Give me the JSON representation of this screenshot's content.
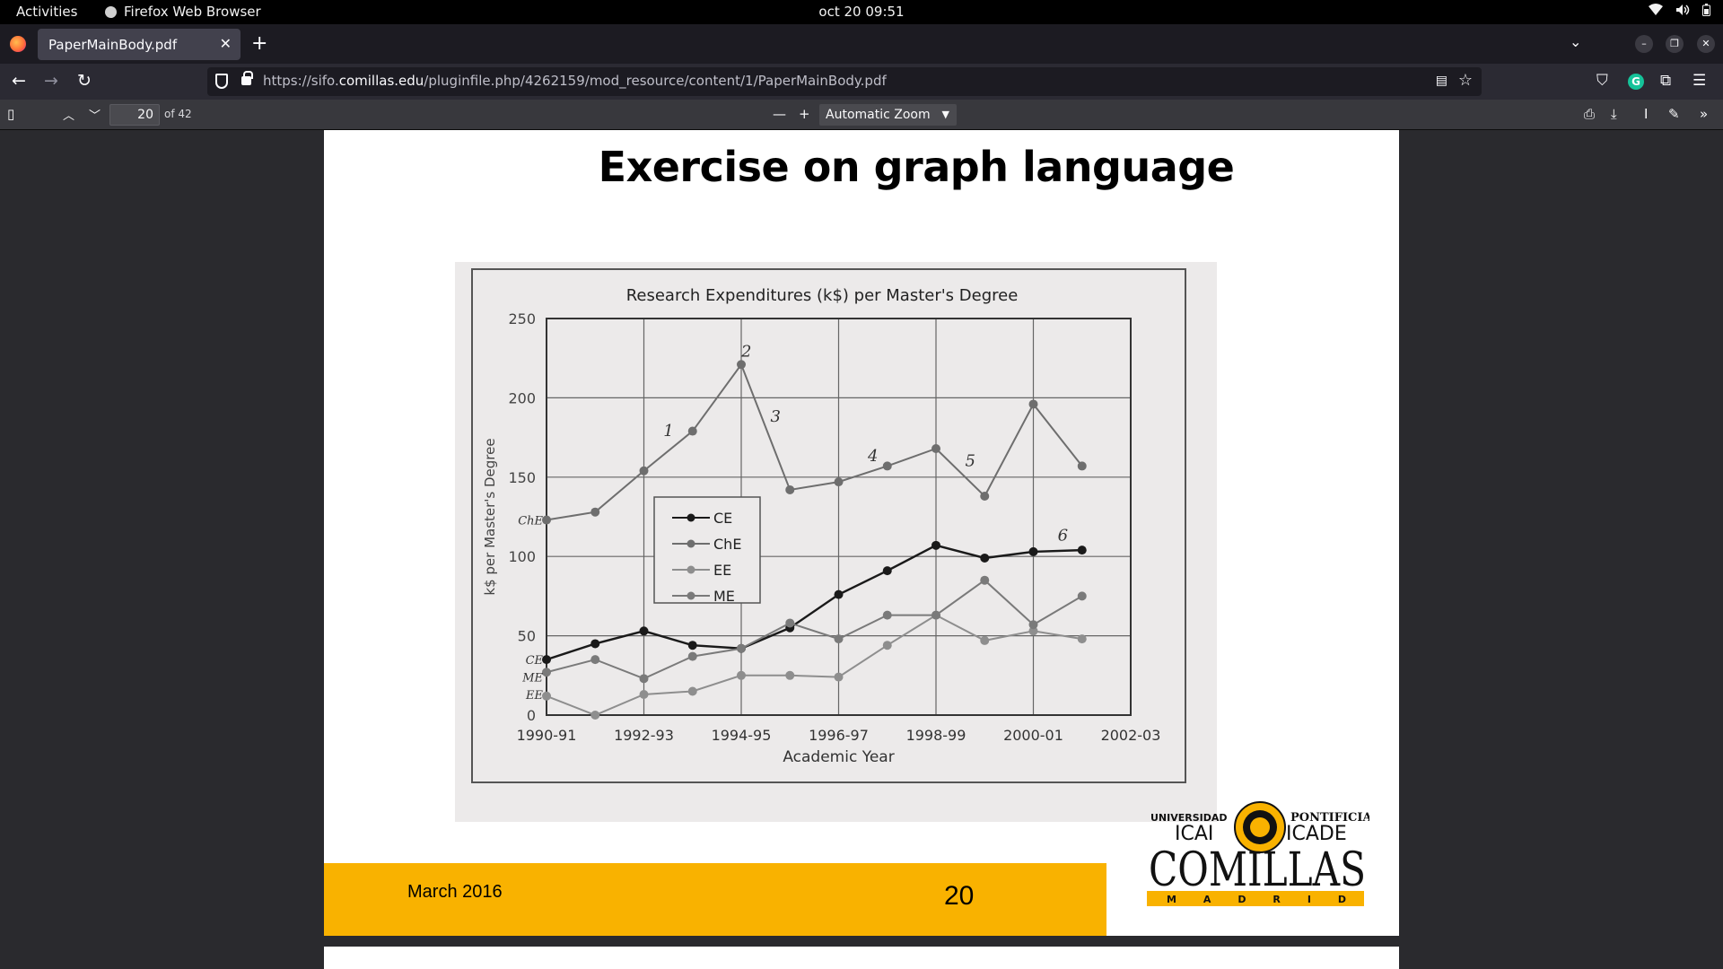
{
  "system": {
    "activities": "Activities",
    "app_name": "Firefox Web Browser",
    "clock": "oct 20  09:51"
  },
  "browser": {
    "tab_title": "PaperMainBody.pdf",
    "url_prefix": "https://sifo.",
    "url_domain": "comillas.edu",
    "url_path": "/pluginfile.php/4262159/mod_resource/content/1/PaperMainBody.pdf"
  },
  "pdf_toolbar": {
    "page_number": "20",
    "page_count": "of 42",
    "zoom": "Automatic Zoom"
  },
  "slide": {
    "title": "Exercise on graph language",
    "footer_date": "March 2016",
    "footer_page": "20",
    "logo": {
      "top_left": "UNIVERSIDAD",
      "top_right": "PONTIFICIA",
      "icai": "ICAI",
      "icade": "ICADE",
      "name": "COMILLAS",
      "city": "M A D R I D"
    }
  },
  "chart_data": {
    "type": "line",
    "title": "Research Expenditures (k$) per Master's Degree",
    "xlabel": "Academic Year",
    "ylabel": "k$ per Master's Degree",
    "x_tick_labels": [
      "1990-91",
      "1992-93",
      "1994-95",
      "1996-97",
      "1998-99",
      "2000-01",
      "2002-03"
    ],
    "y_ticks": [
      0,
      50,
      100,
      150,
      200,
      250
    ],
    "ylim": [
      0,
      250
    ],
    "grid": true,
    "legend": "center-left",
    "series": [
      {
        "name": "CE",
        "x": [
          0,
          0.5,
          1,
          1.5,
          2,
          2.5,
          3,
          3.5,
          4,
          4.5,
          5,
          5.5
        ],
        "values": [
          35,
          45,
          53,
          44,
          42,
          55,
          76,
          91,
          107,
          99,
          103,
          104
        ],
        "marker": "filled",
        "color": "#1a1a1a"
      },
      {
        "name": "ChE",
        "x": [
          0,
          0.5,
          1,
          1.5,
          2,
          2.5,
          3,
          3.5,
          4,
          4.5,
          5,
          5.5
        ],
        "values": [
          123,
          128,
          154,
          179,
          221,
          142,
          147,
          157,
          168,
          138,
          196,
          157
        ],
        "marker": "filled",
        "color": "#6e6e6e"
      },
      {
        "name": "EE",
        "x": [
          0,
          0.5,
          1,
          1.5,
          2,
          2.5,
          3,
          3.5,
          4,
          4.5,
          5,
          5.5
        ],
        "values": [
          12,
          0,
          13,
          15,
          25,
          25,
          24,
          44,
          63,
          47,
          53,
          48
        ],
        "marker": "filled",
        "color": "#8e8e8e"
      },
      {
        "name": "ME",
        "x": [
          0,
          0.5,
          1,
          1.5,
          2,
          2.5,
          3,
          3.5,
          4,
          4.5,
          5,
          5.5
        ],
        "values": [
          27,
          35,
          23,
          37,
          42,
          58,
          48,
          63,
          63,
          85,
          57,
          75
        ],
        "marker": "filled",
        "color": "#7a7a7a"
      }
    ],
    "annotations": [
      {
        "text": "1",
        "x": 1.2,
        "y": 176
      },
      {
        "text": "2",
        "x": 2.0,
        "y": 226
      },
      {
        "text": "3",
        "x": 2.3,
        "y": 185
      },
      {
        "text": "4",
        "x": 3.3,
        "y": 160
      },
      {
        "text": "5",
        "x": 4.3,
        "y": 157
      },
      {
        "text": "6",
        "x": 5.25,
        "y": 110
      }
    ],
    "series_end_labels": [
      {
        "text": "ChE",
        "y": 123
      },
      {
        "text": "CE",
        "y": 35
      },
      {
        "text": "ME",
        "y": 24
      },
      {
        "text": "EE",
        "y": 13
      }
    ]
  }
}
